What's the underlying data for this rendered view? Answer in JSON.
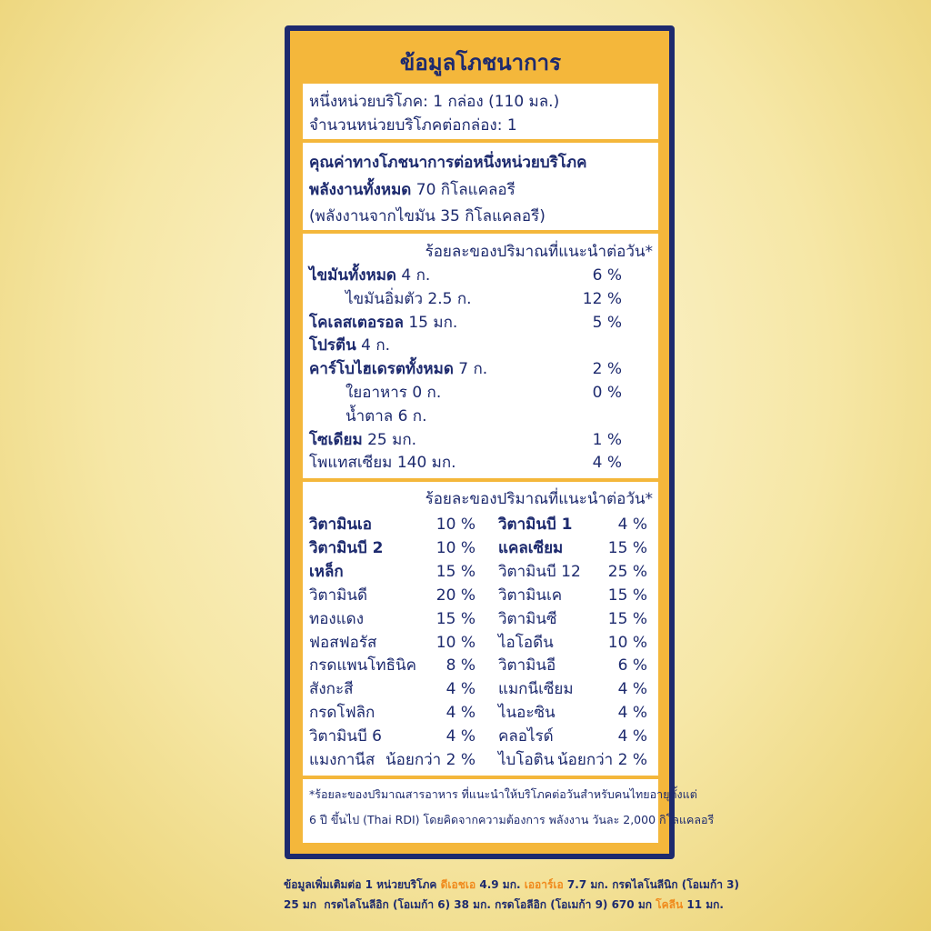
{
  "title": "ข้อมูลโภชนาการ",
  "serving": [
    "หนึ่งหน่วยบริโภค: 1 กล่อง (110 มล.)",
    "จำนวนหน่วยบริโภคต่อกล่อง: 1"
  ],
  "energy": {
    "heading": "คุณค่าทางโภชนาการต่อหนึ่งหน่วยบริโภค",
    "total_label": "พลังงานทั้งหมด",
    "total_value": "70 กิโลแคลอรี",
    "fat_energy": "(พลังงานจากไขมัน 35 กิโลแคลอรี)"
  },
  "nutrients": {
    "header": "ร้อยละของปริมาณที่แนะนำต่อวัน*",
    "rows": [
      {
        "name": "ไขมันทั้งหมด",
        "amount": "4 ก.",
        "percent": "6 %",
        "bold": true,
        "indent": false
      },
      {
        "name": "ไขมันอิ่มตัว",
        "amount": "2.5 ก.",
        "percent": "12 %",
        "bold": false,
        "indent": true
      },
      {
        "name": "โคเลสเตอรอล",
        "amount": "15 มก.",
        "percent": "5 %",
        "bold": true,
        "indent": false
      },
      {
        "name": "โปรตีน",
        "amount": "4 ก.",
        "percent": null,
        "bold": true,
        "indent": false
      },
      {
        "name": "คาร์โบไฮเดรตทั้งหมด",
        "amount": "7 ก.",
        "percent": "2 %",
        "bold": true,
        "indent": false
      },
      {
        "name": "ใยอาหาร",
        "amount": "0 ก.",
        "percent": "0 %",
        "bold": false,
        "indent": true
      },
      {
        "name": "น้ำตาล",
        "amount": "6 ก.",
        "percent": null,
        "bold": false,
        "indent": true
      },
      {
        "name": "โซเดียม",
        "amount": "25 มก.",
        "percent": "1 %",
        "bold": true,
        "indent": false
      },
      {
        "name": "โพแทสเซียม",
        "amount": "140 มก.",
        "percent": "4 %",
        "bold": false,
        "indent": false
      }
    ]
  },
  "vitamins": {
    "header": "ร้อยละของปริมาณที่แนะนำต่อวัน*",
    "left": [
      {
        "name": "วิตามินเอ",
        "percent": "10 %",
        "bold": true
      },
      {
        "name": "วิตามินบี 2",
        "percent": "10 %",
        "bold": true
      },
      {
        "name": "เหล็ก",
        "percent": "15 %",
        "bold": true
      },
      {
        "name": "วิตามินดี",
        "percent": "20 %",
        "bold": false
      },
      {
        "name": "ทองแดง",
        "percent": "15 %",
        "bold": false
      },
      {
        "name": "ฟอสฟอรัส",
        "percent": "10 %",
        "bold": false
      },
      {
        "name": "กรดแพนโทธินิค",
        "percent": "8 %",
        "bold": false
      },
      {
        "name": "สังกะสี",
        "percent": "4 %",
        "bold": false
      },
      {
        "name": "กรดโฟลิก",
        "percent": "4 %",
        "bold": false
      },
      {
        "name": "วิตามินบี 6",
        "percent": "4 %",
        "bold": false
      },
      {
        "name": "แมงกานีส",
        "percent": "น้อยกว่า 2 %",
        "bold": false
      }
    ],
    "right": [
      {
        "name": "วิตามินบี 1",
        "percent": "4 %",
        "bold": true
      },
      {
        "name": "แคลเซียม",
        "percent": "15 %",
        "bold": true
      },
      {
        "name": "วิตามินบี 12",
        "percent": "25 %",
        "bold": false
      },
      {
        "name": "วิตามินเค",
        "percent": "15 %",
        "bold": false
      },
      {
        "name": "วิตามินซี",
        "percent": "15 %",
        "bold": false
      },
      {
        "name": "ไอโอดีน",
        "percent": "10 %",
        "bold": false
      },
      {
        "name": "วิตามินอี",
        "percent": "6 %",
        "bold": false
      },
      {
        "name": "แมกนีเซียม",
        "percent": "4 %",
        "bold": false
      },
      {
        "name": "ไนอะซิน",
        "percent": "4 %",
        "bold": false
      },
      {
        "name": "คลอไรด์",
        "percent": "4 %",
        "bold": false
      },
      {
        "name": "ไบโอติน",
        "percent": "น้อยกว่า 2 %",
        "bold": false
      }
    ]
  },
  "footnote": [
    "*ร้อยละของปริมาณสารอาหาร ที่แนะนำให้บริโภคต่อวันสำหรับคนไทยอายุตั้งแต่",
    "6 ปี ขึ้นไป (Thai RDI) โดยคิดจากความต้องการ พลังงาน วันละ 2,000 กิโลแคลอรี"
  ],
  "extra": [
    [
      {
        "text": "ข้อมูลเพิ่มเติมต่อ 1 หน่วยบริโภค ",
        "highlight": false
      },
      {
        "text": "ดีเอชเอ",
        "highlight": true
      },
      {
        "text": " 4.9 มก. ",
        "highlight": false
      },
      {
        "text": "เออาร์เอ",
        "highlight": true
      },
      {
        "text": " 7.7 มก. กรดไลโนลีนิก (โอเมก้า 3)",
        "highlight": false
      }
    ],
    [
      {
        "text": "25 มก  กรดไลโนลีอิก (โอเมก้า 6) 38 มก. กรดโอลีอิก (โอเมก้า 9) 670 มก ",
        "highlight": false
      },
      {
        "text": "โคลีน",
        "highlight": true
      },
      {
        "text": " 11 มก.",
        "highlight": false
      }
    ]
  ]
}
